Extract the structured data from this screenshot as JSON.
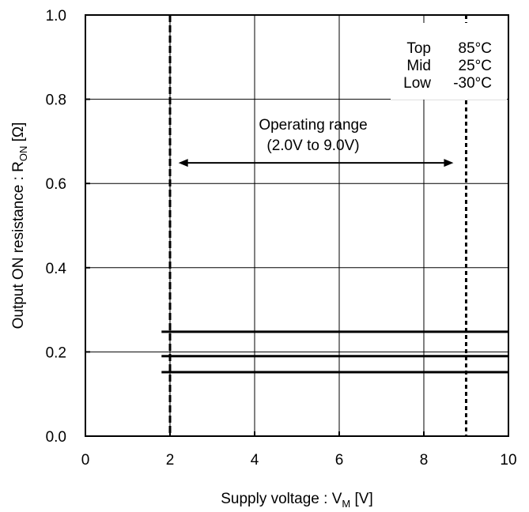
{
  "chart_data": {
    "type": "line",
    "xlabel": {
      "main": "Supply voltage : V",
      "sub": "M",
      "unit": " [V]"
    },
    "ylabel": {
      "main": "Output ON resistance : R",
      "sub": "ON",
      "unit": " [Ω]"
    },
    "xlim": [
      0,
      10
    ],
    "ylim": [
      0.0,
      1.0
    ],
    "x_ticks": [
      "0",
      "2",
      "4",
      "6",
      "8",
      "10"
    ],
    "y_ticks": [
      "0.0",
      "0.2",
      "0.4",
      "0.6",
      "0.8",
      "1.0"
    ],
    "grid": true,
    "series": [
      {
        "x": [
          1.8,
          10
        ],
        "y": [
          0.248,
          0.248
        ]
      },
      {
        "x": [
          1.8,
          10
        ],
        "y": [
          0.19,
          0.19
        ]
      },
      {
        "x": [
          1.8,
          10
        ],
        "y": [
          0.152,
          0.152
        ]
      }
    ],
    "operating_range": {
      "label_line1": "Operating range",
      "label_line2": "(2.0V to 9.0V)",
      "from": 2.0,
      "to": 9.0,
      "arrow_y": 0.649,
      "arrow_x": [
        2.2,
        8.7
      ]
    },
    "legend": {
      "rows": [
        {
          "label": "Top",
          "value": "85°C"
        },
        {
          "label": "Mid",
          "value": "25°C"
        },
        {
          "label": "Low",
          "value": "-30°C"
        }
      ],
      "position": "top-right"
    }
  }
}
